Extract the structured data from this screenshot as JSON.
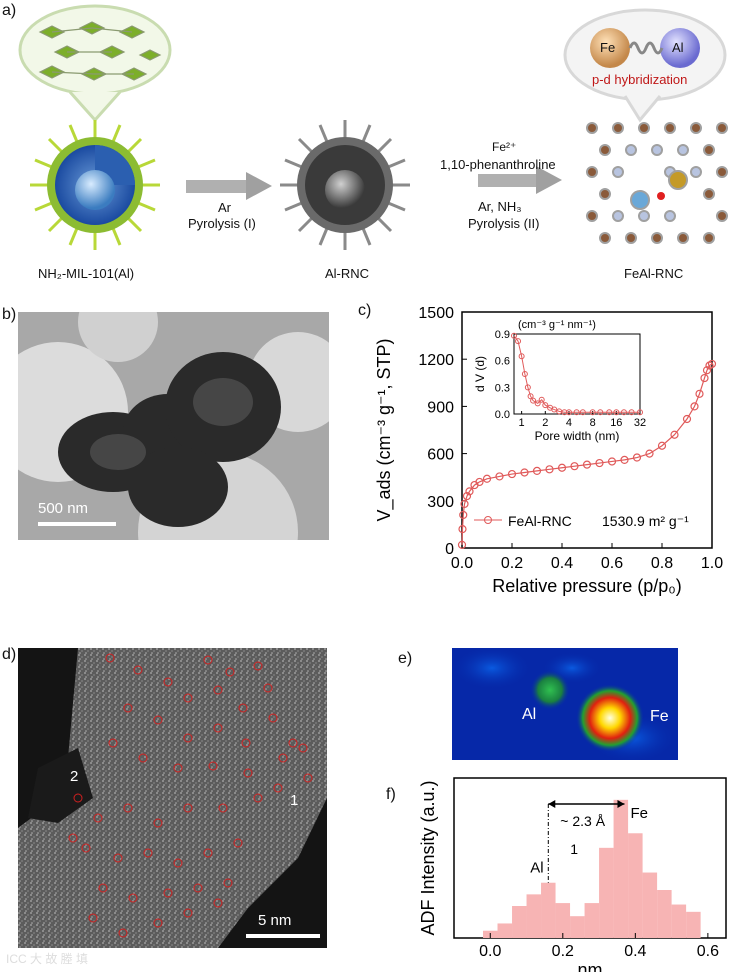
{
  "panel_labels": {
    "a": "a)",
    "b": "b)",
    "c": "c)",
    "d": "d)",
    "e": "e)",
    "f": "f)"
  },
  "panel_a": {
    "stage1_label": "NH₂-MIL-101(Al)",
    "stage2_label": "Al-RNC",
    "stage3_label": "FeAl-RNC",
    "step1_line1": "Ar",
    "step1_line2": "Pyrolysis (I)",
    "step2_line1": "Fe²⁺",
    "step2_line2": "1,10-phenanthroline",
    "step2_line3": "Ar, NH₃",
    "step2_line4": "Pyrolysis (II)",
    "bubble_fe": "Fe",
    "bubble_al": "Al",
    "bubble_caption": "p-d hybridization"
  },
  "panel_b": {
    "scale_bar": "500 nm"
  },
  "panel_d": {
    "scale_bar": "5 nm",
    "marker1": "1",
    "marker2": "2"
  },
  "panel_e": {
    "label_al": "Al",
    "label_fe": "Fe"
  },
  "watermark": "ICC 大 故 塍 填",
  "colors": {
    "isotherm": "#e05a5a",
    "adf_bars": "#f7b4b4",
    "map_bg": "#0628a8"
  },
  "chart_data": [
    {
      "type": "scatter",
      "panel": "c",
      "xlabel": "Relative pressure (p/p₀)",
      "ylabel": "V_ads (cm⁻³ g⁻¹, STP)",
      "xlim": [
        0.0,
        1.0
      ],
      "ylim": [
        0,
        1500
      ],
      "xticks": [
        "0.0",
        "0.2",
        "0.4",
        "0.6",
        "0.8",
        "1.0"
      ],
      "yticks": [
        "0",
        "300",
        "600",
        "900",
        "1200",
        "1500"
      ],
      "legend": "FeAl-RNC",
      "legend_value": "1530.9 m² g⁻¹",
      "series": [
        {
          "name": "FeAl-RNC",
          "x": [
            0.0,
            0.002,
            0.005,
            0.01,
            0.02,
            0.03,
            0.05,
            0.07,
            0.1,
            0.15,
            0.2,
            0.25,
            0.3,
            0.35,
            0.4,
            0.45,
            0.5,
            0.55,
            0.6,
            0.65,
            0.7,
            0.75,
            0.8,
            0.85,
            0.9,
            0.93,
            0.95,
            0.97,
            0.98,
            0.99,
            1.0
          ],
          "y": [
            20,
            120,
            210,
            280,
            330,
            360,
            400,
            420,
            440,
            455,
            470,
            480,
            490,
            500,
            510,
            520,
            530,
            540,
            550,
            560,
            575,
            600,
            650,
            720,
            820,
            900,
            980,
            1080,
            1130,
            1160,
            1170
          ]
        }
      ],
      "inset": {
        "xlabel": "Pore width (nm)",
        "ylabel": "d V (d)",
        "units": "(cm⁻³ g⁻¹ nm⁻¹)",
        "xticks": [
          "1",
          "2",
          "4",
          "8",
          "16",
          "32"
        ],
        "yticks": [
          "0.0",
          "0.3",
          "0.6",
          "0.9"
        ],
        "ylim": [
          0.0,
          0.9
        ],
        "x": [
          0.8,
          0.9,
          1.0,
          1.1,
          1.2,
          1.3,
          1.4,
          1.6,
          1.8,
          2.0,
          2.3,
          2.6,
          3.0,
          3.5,
          4,
          5,
          6,
          8,
          10,
          13,
          16,
          20,
          25,
          32
        ],
        "y": [
          0.88,
          0.82,
          0.65,
          0.45,
          0.3,
          0.2,
          0.15,
          0.12,
          0.16,
          0.1,
          0.07,
          0.05,
          0.03,
          0.02,
          0.02,
          0.02,
          0.02,
          0.02,
          0.02,
          0.02,
          0.02,
          0.02,
          0.02,
          0.02
        ]
      }
    },
    {
      "type": "bar",
      "panel": "f",
      "xlabel": "nm",
      "ylabel": "ADF Intensity (a.u.)",
      "xlim": [
        -0.1,
        0.65
      ],
      "xticks": [
        "0.0",
        "0.2",
        "0.4",
        "0.6"
      ],
      "bin_centers": [
        0.0,
        0.04,
        0.08,
        0.12,
        0.16,
        0.2,
        0.24,
        0.28,
        0.32,
        0.36,
        0.4,
        0.44,
        0.48,
        0.52,
        0.56
      ],
      "values": [
        0.05,
        0.1,
        0.22,
        0.3,
        0.38,
        0.24,
        0.15,
        0.24,
        0.62,
        0.95,
        0.72,
        0.45,
        0.33,
        0.23,
        0.18
      ],
      "ylim": [
        0,
        1.1
      ],
      "annotations": {
        "al": "Al",
        "fe": "Fe",
        "distance": "~ 2.3 Å",
        "index": "1"
      },
      "al_x": 0.16,
      "fe_x": 0.37
    }
  ]
}
